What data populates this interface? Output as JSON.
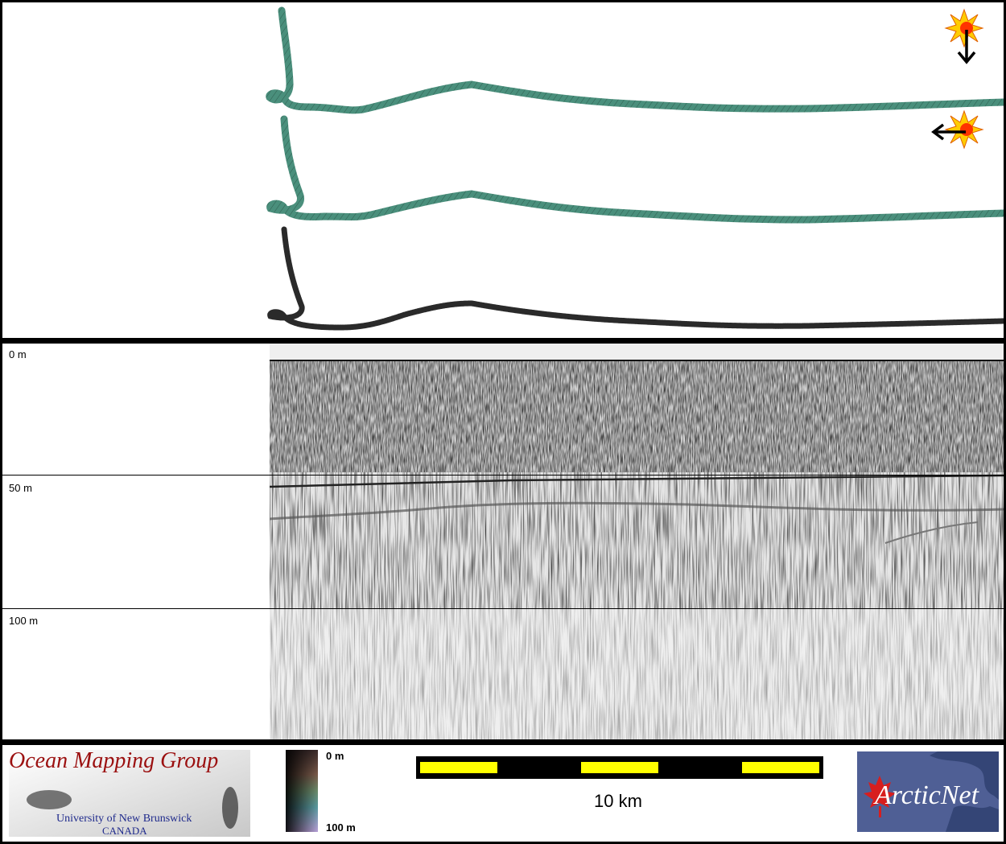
{
  "profile": {
    "depth_labels": [
      "0 m",
      "50 m",
      "100 m"
    ]
  },
  "tracks": {
    "colors": {
      "track_a": "#4a8f7c",
      "track_b": "#4a8f7c",
      "track_c": "#2a2a2a"
    },
    "direction_icons": [
      "sun-arrow-down-icon",
      "sun-arrow-left-icon"
    ]
  },
  "footer": {
    "omg_title": "Ocean Mapping Group",
    "omg_subtitle_1": "University of New Brunswick",
    "omg_subtitle_2": "CANADA",
    "colorbar_top": "0 m",
    "colorbar_bottom": "100 m",
    "scale_label": "10 km",
    "arcticnet_text": "ArcticNet",
    "scalebar_colors": {
      "bar": "#000000",
      "segment": "#ffff00"
    }
  }
}
